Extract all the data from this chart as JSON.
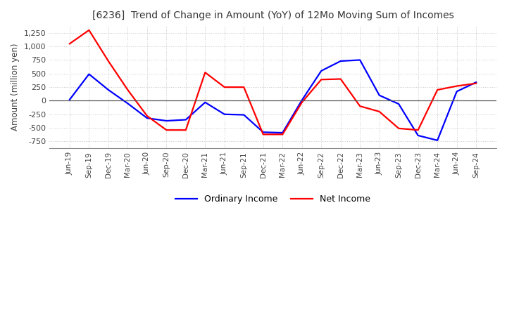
{
  "title": "[6236]  Trend of Change in Amount (YoY) of 12Mo Moving Sum of Incomes",
  "ylabel": "Amount (million yen)",
  "x_labels": [
    "Jun-19",
    "Sep-19",
    "Dec-19",
    "Mar-20",
    "Jun-20",
    "Sep-20",
    "Dec-20",
    "Mar-21",
    "Jun-21",
    "Sep-21",
    "Dec-21",
    "Mar-22",
    "Jun-22",
    "Sep-22",
    "Dec-22",
    "Mar-23",
    "Jun-23",
    "Sep-23",
    "Dec-23",
    "Mar-24",
    "Jun-24",
    "Sep-24"
  ],
  "ordinary_income": [
    20,
    490,
    200,
    -50,
    -320,
    -370,
    -350,
    -30,
    -250,
    -260,
    -580,
    -590,
    10,
    550,
    730,
    750,
    100,
    -60,
    -640,
    -730,
    170,
    340
  ],
  "net_income": [
    1050,
    1300,
    730,
    200,
    -280,
    -540,
    -540,
    520,
    250,
    250,
    -620,
    -620,
    -30,
    390,
    400,
    -100,
    -200,
    -510,
    -540,
    200,
    270,
    320
  ],
  "ordinary_color": "#0000ff",
  "net_color": "#ff0000",
  "ylim": [
    -875,
    1375
  ],
  "yticks": [
    -750,
    -500,
    -250,
    0,
    250,
    500,
    750,
    1000,
    1250
  ],
  "grid_color": "#c8c8c8",
  "background_color": "#ffffff",
  "legend_labels": [
    "Ordinary Income",
    "Net Income"
  ]
}
